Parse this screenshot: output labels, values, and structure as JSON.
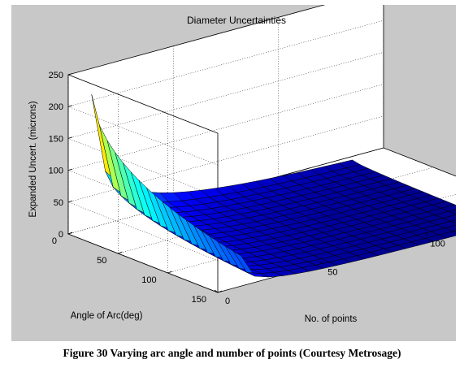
{
  "caption": "Figure 30 Varying arc angle and number of points (Courtesy Metrosage)",
  "chart_data": {
    "type": "surface3d",
    "title": "Diameter Uncertainties",
    "zlabel": "Expanded Uncert. (microns)",
    "xlabel": "No. of points",
    "ylabel": "Angle of Arc(deg)",
    "xlim": [
      0,
      150
    ],
    "ylim": [
      0,
      150
    ],
    "zlim": [
      0,
      250
    ],
    "x_ticks": [
      0,
      50,
      100,
      150
    ],
    "y_ticks": [
      0,
      50,
      100,
      150
    ],
    "z_ticks": [
      0,
      50,
      100,
      150,
      200,
      250
    ],
    "colormap": "jet",
    "background": "#c8c8c8",
    "axes_face": "#ffffff",
    "grid": true,
    "surface": {
      "angle_of_arc_deg": [
        15,
        165
      ],
      "no_of_points": [
        4,
        128
      ],
      "n_angle": 20,
      "n_points": 20,
      "corner_values": {
        "min_angle_min_points": 225,
        "max_angle_min_points": 63,
        "min_angle_max_points": 10,
        "max_angle_max_points": 2
      }
    }
  }
}
